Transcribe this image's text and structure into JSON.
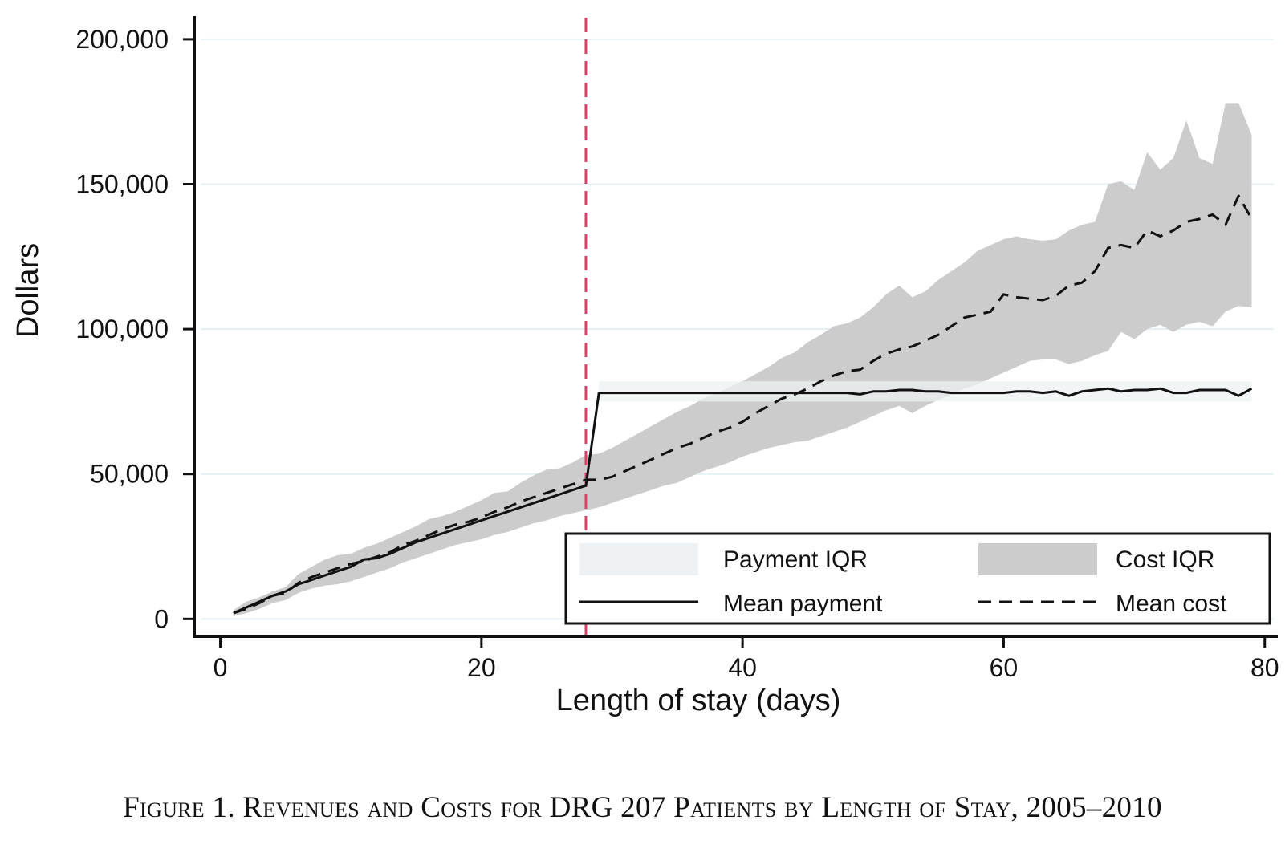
{
  "chart_data": {
    "type": "line",
    "xlabel": "Length of stay (days)",
    "ylabel": "Dollars",
    "xlim": [
      -2,
      81
    ],
    "ylim": [
      -6000,
      208000
    ],
    "xticks": [
      0,
      20,
      40,
      60,
      80
    ],
    "yticks": [
      0,
      50000,
      100000,
      150000,
      200000
    ],
    "xtick_labels": [
      "0",
      "20",
      "40",
      "60",
      "80"
    ],
    "ytick_labels": [
      "0",
      "50,000",
      "100,000",
      "150,000",
      "200,000"
    ],
    "grid": "horizontal",
    "vertical_line": {
      "x": 28,
      "style": "dashed",
      "color": "#d9436a"
    },
    "colors": {
      "cost_iqr": "#cccccc",
      "payment_iqr": "#eef1f3",
      "mean_payment": "#111111",
      "mean_cost": "#111111",
      "grid": "#e3f0f3"
    },
    "x": [
      1,
      2,
      3,
      4,
      5,
      6,
      7,
      8,
      9,
      10,
      11,
      12,
      13,
      14,
      15,
      16,
      17,
      18,
      19,
      20,
      21,
      22,
      23,
      24,
      25,
      26,
      27,
      28,
      29,
      30,
      31,
      32,
      33,
      34,
      35,
      36,
      37,
      38,
      39,
      40,
      41,
      42,
      43,
      44,
      45,
      46,
      47,
      48,
      49,
      50,
      51,
      52,
      53,
      54,
      55,
      56,
      57,
      58,
      59,
      60,
      61,
      62,
      63,
      64,
      65,
      66,
      67,
      68,
      69,
      70,
      71,
      72,
      73,
      74,
      75,
      76,
      77,
      78,
      79
    ],
    "series": [
      {
        "name": "Mean payment",
        "style": "solid",
        "values": [
          2000,
          4000,
          6000,
          8000,
          9500,
          12000,
          13500,
          15000,
          16500,
          18000,
          20500,
          21000,
          22500,
          24500,
          26500,
          28000,
          29500,
          31000,
          32500,
          34000,
          35500,
          37000,
          38500,
          40000,
          41500,
          43000,
          44500,
          46000,
          78000,
          78000,
          78000,
          78000,
          78000,
          78000,
          78000,
          78000,
          78000,
          78000,
          78000,
          78000,
          78000,
          78000,
          78000,
          78000,
          78000,
          78000,
          78000,
          78000,
          77500,
          78500,
          78500,
          79000,
          79000,
          78500,
          78500,
          78000,
          78000,
          78000,
          78000,
          78000,
          78500,
          78500,
          78000,
          78500,
          77000,
          78500,
          79000,
          79500,
          78500,
          79000,
          79000,
          79500,
          78000,
          78000,
          79000,
          79000,
          79000,
          77000,
          79500
        ]
      },
      {
        "name": "Mean cost",
        "style": "dashed",
        "values": [
          2000,
          3500,
          5500,
          8000,
          9000,
          12500,
          14500,
          16000,
          17500,
          19000,
          20000,
          21500,
          23000,
          25500,
          27000,
          29000,
          31000,
          32500,
          33500,
          35000,
          37000,
          38500,
          40500,
          42000,
          43500,
          45000,
          46500,
          48000,
          48000,
          49000,
          51000,
          53000,
          55000,
          57000,
          59000,
          60500,
          62500,
          64500,
          66000,
          68000,
          71000,
          73500,
          76000,
          77500,
          79500,
          82000,
          84000,
          85500,
          86000,
          89000,
          91500,
          93000,
          94000,
          96000,
          98000,
          101000,
          104000,
          105000,
          106000,
          112000,
          111000,
          110500,
          110000,
          111500,
          115000,
          116000,
          120000,
          128000,
          129000,
          128000,
          134000,
          132000,
          134000,
          137000,
          138000,
          139500,
          136000,
          146000,
          138000
        ]
      }
    ],
    "bands": [
      {
        "name": "Cost IQR",
        "lower": [
          1000,
          2000,
          3500,
          5500,
          6500,
          9000,
          10500,
          11500,
          12000,
          13000,
          14500,
          16000,
          17500,
          19500,
          21000,
          22500,
          24000,
          25500,
          26500,
          27500,
          29000,
          30000,
          31500,
          33000,
          34000,
          35500,
          36500,
          37500,
          38500,
          40000,
          41500,
          43000,
          44500,
          46000,
          47000,
          49000,
          51000,
          52500,
          54000,
          56000,
          57500,
          59000,
          60000,
          61000,
          61500,
          63000,
          64500,
          66000,
          68000,
          70000,
          72000,
          73500,
          71000,
          73500,
          75500,
          77500,
          79500,
          81000,
          83000,
          85000,
          87000,
          89000,
          89500,
          89500,
          88000,
          89000,
          91000,
          92500,
          99000,
          96500,
          100000,
          101500,
          99000,
          101500,
          102500,
          101000,
          106000,
          108000,
          107500
        ],
        "upper": [
          3000,
          6000,
          7500,
          9500,
          11000,
          15500,
          18000,
          20500,
          22000,
          22500,
          24500,
          26000,
          28000,
          30000,
          32000,
          34500,
          35500,
          37000,
          39000,
          41000,
          43500,
          44000,
          47000,
          49500,
          51500,
          52000,
          54000,
          56500,
          57000,
          59000,
          61500,
          64000,
          66500,
          69000,
          71500,
          73500,
          76000,
          78000,
          80000,
          82000,
          84500,
          87000,
          90000,
          92000,
          95500,
          98000,
          101000,
          102000,
          104000,
          107500,
          112000,
          115000,
          111000,
          113000,
          117000,
          120000,
          123000,
          127000,
          129000,
          131000,
          132000,
          131000,
          130500,
          131000,
          134000,
          136000,
          137000,
          150000,
          151000,
          148000,
          161000,
          155000,
          159000,
          172000,
          159000,
          157000,
          178000,
          178000,
          167000
        ]
      },
      {
        "name": "Payment IQR",
        "x_start": 29,
        "lower": 75000,
        "upper": 82000
      }
    ],
    "legend": {
      "position": "bottom-right",
      "entries": [
        "Payment IQR",
        "Cost IQR",
        "Mean payment",
        "Mean cost"
      ]
    }
  },
  "caption": "Figure 1. Revenues and Costs for DRG 207 Patients by Length of Stay, 2005–2010"
}
